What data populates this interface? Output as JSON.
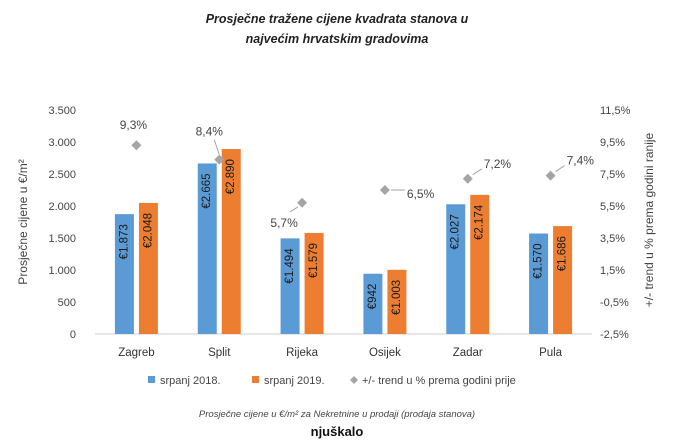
{
  "chart_data": {
    "type": "bar",
    "title": [
      "Prosječne tražene cijene kvadrata stanova u",
      "najvećim hrvatskim gradovima"
    ],
    "categories": [
      "Zagreb",
      "Split",
      "Rijeka",
      "Osijek",
      "Zadar",
      "Pula"
    ],
    "series": [
      {
        "name": "srpanj 2018.",
        "color": "#5b9bd5",
        "values": [
          1873,
          2665,
          1494,
          942,
          2027,
          1570
        ],
        "labels": [
          "€1.873",
          "€2.665",
          "€1.494",
          "€942",
          "€2.027",
          "€1.570"
        ]
      },
      {
        "name": "srpanj 2019.",
        "color": "#ed7d31",
        "values": [
          2048,
          2890,
          1579,
          1003,
          2174,
          1686
        ],
        "labels": [
          "€2.048",
          "€2.890",
          "€1.579",
          "€1.003",
          "€2.174",
          "€1.686"
        ]
      }
    ],
    "trend": {
      "name": "+/- trend u % prema godini prije",
      "color": "#a5a5a5",
      "values": [
        9.3,
        8.4,
        5.7,
        6.5,
        7.2,
        7.4
      ],
      "labels": [
        "9,3%",
        "8,4%",
        "5,7%",
        "6,5%",
        "7,2%",
        "7,4%"
      ]
    },
    "ylabel": "Prosječne cijene u €/m²",
    "y2label": "+/- trend u % prema godini ranije",
    "ylim": [
      0,
      3500
    ],
    "yticks": [
      0,
      500,
      1000,
      1500,
      2000,
      2500,
      3000,
      3500
    ],
    "ytick_labels": [
      "0",
      "500",
      "1.000",
      "1.500",
      "2.000",
      "2.500",
      "3.000",
      "3.500"
    ],
    "y2lim": [
      -2.5,
      11.5
    ],
    "y2ticks": [
      -2.5,
      -0.5,
      1.5,
      3.5,
      5.5,
      7.5,
      9.5,
      11.5
    ],
    "y2tick_labels": [
      "-2,5%",
      "-0,5%",
      "1,5%",
      "3,5%",
      "5,5%",
      "7,5%",
      "9,5%",
      "11,5%"
    ],
    "grid": false,
    "legend": "bottom"
  },
  "caption": "Prosječne cijene u €/m² za Nekretnine u prodaji (prodaja stanova)",
  "logo": "njuškalo"
}
